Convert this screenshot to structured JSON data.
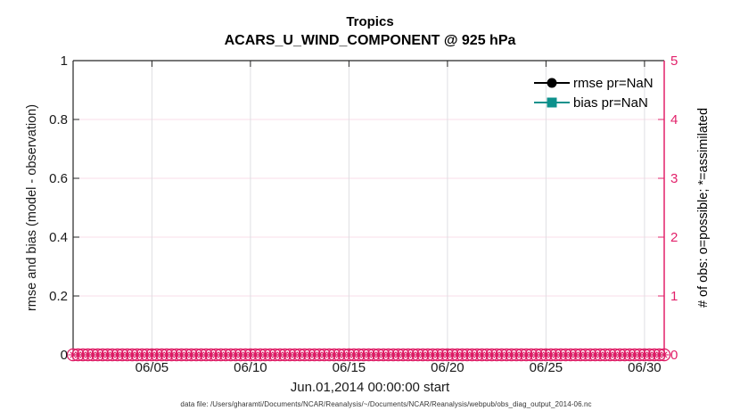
{
  "titles": {
    "line1": "Tropics",
    "line2": "ACARS_U_WIND_COMPONENT @ 925 hPa"
  },
  "left_axis": {
    "label": "rmse and bias (model - observation)",
    "ticks": [
      "0",
      "0.2",
      "0.4",
      "0.6",
      "0.8",
      "1"
    ],
    "color": "#1a1a1a"
  },
  "right_axis": {
    "label": "# of obs: o=possible; *=assimilated",
    "ticks": [
      "0",
      "1",
      "2",
      "3",
      "4",
      "5"
    ],
    "color": "#E2206A"
  },
  "x_axis": {
    "tick_labels": [
      "06/05",
      "06/10",
      "06/15",
      "06/20",
      "06/25",
      "06/30"
    ],
    "tick_day_offsets": [
      4,
      9,
      14,
      19,
      24,
      29
    ],
    "days_span": 30,
    "label": "Jun.01,2014 00:00:00 start"
  },
  "legend": {
    "entries": [
      {
        "label": "rmse pr=NaN",
        "marker": "circle",
        "color": "#000000"
      },
      {
        "label": "bias pr=NaN",
        "marker": "square",
        "color": "#0D918C"
      }
    ]
  },
  "footer": "data file: /Users/gharamti/Documents/NCAR/Reanalysis/~/Documents/NCAR/Reanalysis/webpub/obs_diag_output_2014-06.nc",
  "obs_markers": {
    "count": 121,
    "value": 0,
    "color": "#DE1A64",
    "description": "overlapping o (possible) and * (assimilated) markers at zero along the whole x-axis"
  },
  "grid": {
    "vertical_color": "#DFDFE2",
    "horizontal_color": "#F9DCE8"
  },
  "spines": {
    "black": "#262626",
    "pink": "#E2206A"
  },
  "chart_data": {
    "type": "line",
    "title": "Tropics",
    "subtitle": "ACARS_U_WIND_COMPONENT @ 925 hPa",
    "xlabel": "Jun.01,2014 00:00:00 start",
    "ylabel_left": "rmse and bias (model - observation)",
    "ylabel_right": "# of obs: o=possible; *=assimilated",
    "ylim_left": [
      0,
      1
    ],
    "ylim_right": [
      0,
      5
    ],
    "x_range": [
      "2014-06-01 00:00",
      "2014-07-01 00:00"
    ],
    "x_ticks": [
      "06/05",
      "06/10",
      "06/15",
      "06/20",
      "06/25",
      "06/30"
    ],
    "grid": true,
    "legend_position": "top-right-inside, no box",
    "series": [
      {
        "name": "rmse pr=NaN",
        "axis": "left",
        "style": "black line, filled circle marker",
        "values": "all NaN - nothing plotted"
      },
      {
        "name": "bias pr=NaN",
        "axis": "left",
        "style": "teal line, filled square marker",
        "values": "all NaN - nothing plotted"
      },
      {
        "name": "# obs possible (o markers)",
        "axis": "right",
        "constant_value": 0,
        "n_points": 121
      },
      {
        "name": "# obs assimilated (* markers)",
        "axis": "right",
        "constant_value": 0,
        "n_points": 121
      }
    ]
  }
}
